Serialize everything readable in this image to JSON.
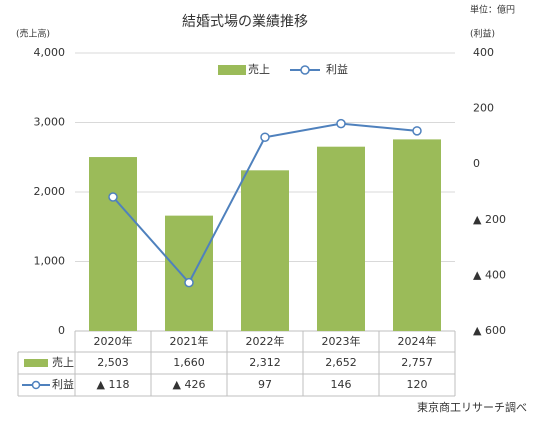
{
  "chart_data": {
    "type": "bar",
    "title": "結婚式場の業績推移",
    "unit_note": "単位：億円",
    "y_label": "(売上高)",
    "y2_label": "(利益)",
    "source": "東京商工リサーチ調べ",
    "categories": [
      "2020年",
      "2021年",
      "2022年",
      "2023年",
      "2024年"
    ],
    "series": [
      {
        "name": "売上",
        "type": "bar",
        "color": "#9bbb59",
        "values": [
          2503,
          1660,
          2312,
          2652,
          2757
        ],
        "value_labels": [
          "2,503",
          "1,660",
          "2,312",
          "2,652",
          "2,757"
        ]
      },
      {
        "name": "利益",
        "type": "line",
        "axis": "y2",
        "color": "#4f81bd",
        "values": [
          -118,
          -426,
          97,
          146,
          120
        ],
        "value_labels": [
          "▲ 118",
          "▲ 426",
          "97",
          "146",
          "120"
        ]
      }
    ],
    "ylim": [
      0,
      4000
    ],
    "yticks": [
      0,
      {
        "value": 1000,
        "label": "1,000"
      },
      {
        "value": 2000,
        "label": "2,000"
      },
      {
        "value": 3000,
        "label": "3,000"
      },
      {
        "value": 4000,
        "label": "4,000"
      }
    ],
    "y2lim": [
      -600,
      400
    ],
    "y2ticks": [
      400,
      200,
      0,
      {
        "value": -200,
        "label": "▲ 200"
      },
      {
        "value": -400,
        "label": "▲ 400"
      },
      {
        "value": -600,
        "label": "▲ 600"
      }
    ],
    "grid": true,
    "legend": "top"
  }
}
